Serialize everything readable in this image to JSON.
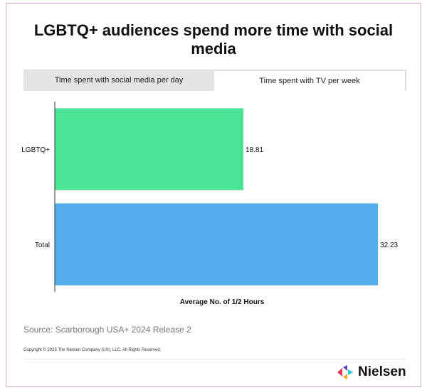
{
  "title": "LGBTQ+ audiences spend more time with social media",
  "tabs": [
    {
      "label": "Time spent with social media per day",
      "active": false
    },
    {
      "label": "Time spent with TV per week",
      "active": true
    }
  ],
  "chart_data": {
    "type": "bar",
    "orientation": "horizontal",
    "categories": [
      "LGBTQ+",
      "Total"
    ],
    "values": [
      18.81,
      32.23
    ],
    "value_labels": [
      "18.81",
      "32.23"
    ],
    "colors": [
      "#4be398",
      "#53aeeb"
    ],
    "xlabel": "Average No. of 1/2 Hours",
    "ylabel": "",
    "xlim": [
      0,
      33.5
    ],
    "grid": false
  },
  "source": "Source: Scarborough USA+ 2024 Release 2",
  "copyright": "Copyright © 2025 The Nielsen Company (US), LLC. All Rights Reserved.",
  "logo": {
    "text": "Nielsen",
    "colors": [
      "#e3345c",
      "#5b3fbd",
      "#22c7d6",
      "#f5a623"
    ]
  }
}
